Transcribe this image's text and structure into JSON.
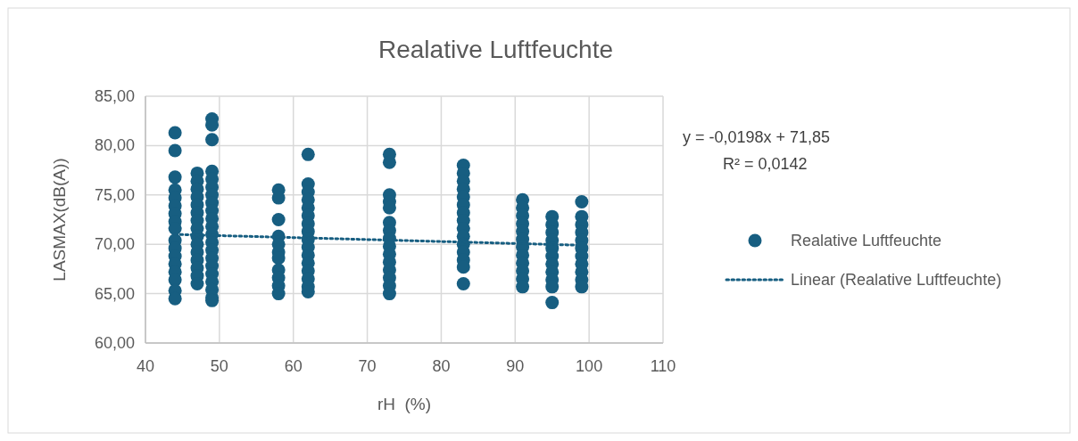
{
  "chart_data": {
    "type": "scatter",
    "title": "Realative Luftfeuchte",
    "xlabel": "rH  (%)",
    "ylabel": "LASMAX(dB(A))",
    "xlim": [
      40,
      110
    ],
    "xticks": [
      40,
      50,
      60,
      70,
      80,
      90,
      100,
      110
    ],
    "ylim": [
      60,
      85
    ],
    "yticks": [
      {
        "value": 60,
        "label": "60,00"
      },
      {
        "value": 65,
        "label": "65,00"
      },
      {
        "value": 70,
        "label": "70,00"
      },
      {
        "value": 75,
        "label": "75,00"
      },
      {
        "value": 80,
        "label": "80,00"
      },
      {
        "value": 85,
        "label": "85,00"
      }
    ],
    "grid": true,
    "legend": "right",
    "annotations": [
      "y = -0,0198x + 71,85",
      "R² = 0,0142"
    ],
    "series": [
      {
        "name": "Realative Luftfeuchte",
        "marker": "circle",
        "color": "#175e81",
        "x": [
          44,
          44,
          44,
          44,
          44,
          44,
          44,
          44,
          44,
          44,
          44,
          44,
          44,
          44,
          44,
          44,
          44,
          47,
          47,
          47,
          47,
          47,
          47,
          47,
          47,
          47,
          47,
          47,
          47,
          47,
          47,
          47,
          49,
          49,
          49,
          49,
          49,
          49,
          49,
          49,
          49,
          49,
          49,
          49,
          49,
          49,
          49,
          49,
          49,
          49,
          49,
          49,
          49,
          58,
          58,
          58,
          58,
          58,
          58,
          58,
          58,
          58,
          58,
          58,
          62,
          62,
          62,
          62,
          62,
          62,
          62,
          62,
          62,
          62,
          62,
          62,
          62,
          62,
          62,
          62,
          73,
          73,
          73,
          73,
          73,
          73,
          73,
          73,
          73,
          73,
          73,
          73,
          73,
          73,
          73,
          83,
          83,
          83,
          83,
          83,
          83,
          83,
          83,
          83,
          83,
          83,
          83,
          83,
          83,
          83,
          91,
          91,
          91,
          91,
          91,
          91,
          91,
          91,
          91,
          91,
          91,
          91,
          95,
          95,
          95,
          95,
          95,
          95,
          95,
          95,
          95,
          95,
          95,
          99,
          99,
          99,
          99,
          99,
          99,
          99,
          99,
          99,
          99,
          99
        ],
        "values": [
          81.3,
          79.5,
          76.8,
          75.5,
          74.7,
          73.9,
          73.1,
          72.3,
          71.6,
          70.4,
          69.6,
          68.8,
          68.0,
          67.2,
          66.4,
          65.3,
          64.5,
          77.2,
          76.4,
          75.6,
          74.8,
          74.0,
          73.2,
          72.4,
          71.6,
          70.8,
          70.0,
          69.2,
          68.4,
          67.6,
          66.8,
          66.0,
          82.7,
          82.1,
          80.6,
          77.4,
          76.6,
          75.8,
          75.0,
          74.2,
          73.4,
          72.6,
          71.8,
          71.0,
          70.2,
          69.4,
          68.6,
          67.8,
          67.0,
          66.2,
          65.4,
          64.6,
          64.3,
          75.5,
          74.7,
          72.5,
          70.8,
          70.0,
          69.2,
          68.6,
          67.4,
          66.6,
          65.8,
          65.0,
          79.1,
          76.1,
          75.3,
          74.5,
          73.7,
          72.9,
          72.1,
          71.3,
          70.5,
          69.7,
          68.9,
          68.1,
          67.3,
          66.5,
          65.7,
          65.2,
          79.1,
          78.3,
          75.0,
          74.3,
          73.7,
          72.2,
          71.4,
          70.6,
          69.8,
          69.0,
          68.2,
          67.4,
          66.6,
          65.8,
          65.0,
          78.0,
          77.2,
          76.4,
          75.6,
          74.8,
          74.0,
          73.2,
          72.4,
          71.6,
          70.8,
          70.0,
          69.2,
          68.4,
          67.7,
          66.0,
          74.5,
          73.7,
          72.9,
          72.1,
          71.3,
          70.5,
          69.7,
          68.9,
          68.1,
          67.3,
          66.5,
          65.7,
          72.8,
          72.0,
          71.2,
          70.4,
          69.6,
          68.8,
          68.0,
          67.2,
          66.4,
          65.7,
          64.1,
          74.3,
          72.8,
          72.0,
          71.2,
          70.4,
          69.6,
          68.8,
          68.0,
          67.2,
          66.4,
          65.7
        ]
      },
      {
        "name": "Linear (Realative Luftfeuchte)",
        "type": "line",
        "color": "#175e81",
        "line_style": "dotted",
        "marker": "none",
        "x": [
          44,
          99
        ],
        "values": [
          71.0,
          69.9
        ]
      }
    ]
  }
}
